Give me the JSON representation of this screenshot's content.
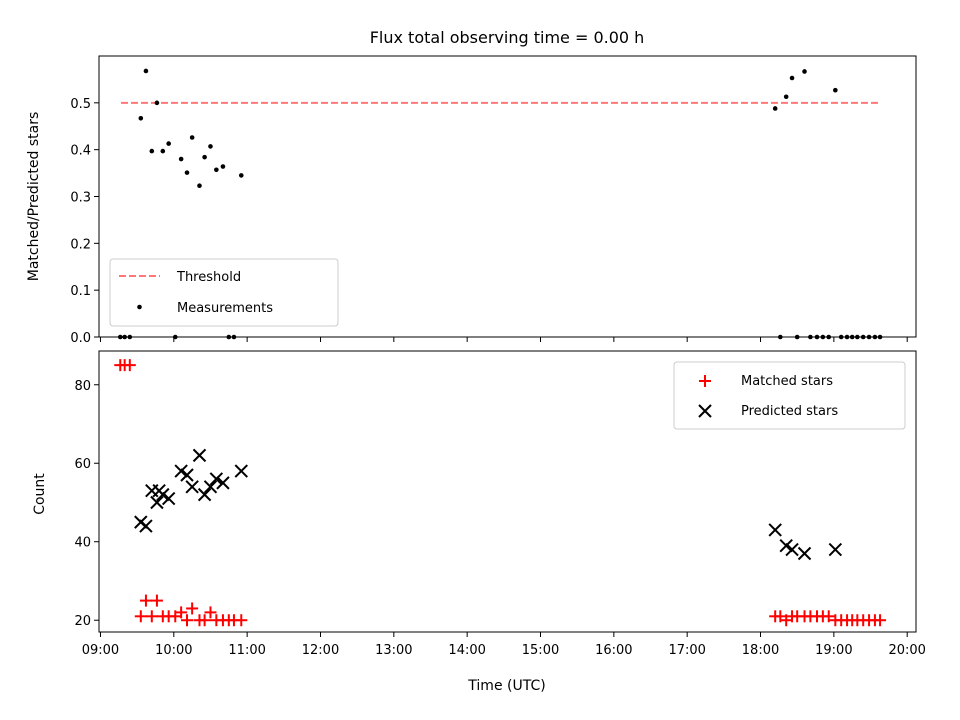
{
  "title": "Flux total observing time = 0.00 h",
  "colors": {
    "threshold": "#ff7777",
    "measurement": "#000000",
    "matched": "#ff0000",
    "predicted": "#000000"
  },
  "chart_data": [
    {
      "type": "scatter",
      "panel": "top",
      "ylabel": "Matched/Predicted stars",
      "xlim": [
        8.98,
        20.12
      ],
      "ylim": [
        0.0,
        0.6
      ],
      "yticks": [
        0.0,
        0.1,
        0.2,
        0.3,
        0.4,
        0.5
      ],
      "ytick_labels": [
        "0.0",
        "0.1",
        "0.2",
        "0.3",
        "0.4",
        "0.5"
      ],
      "legend_position": "lower-left",
      "series": [
        {
          "name": "Threshold",
          "kind": "dashed-line",
          "points": [
            [
              9.28,
              0.5
            ],
            [
              19.63,
              0.5
            ]
          ]
        },
        {
          "name": "Measurements",
          "kind": "dots",
          "points": [
            [
              9.27,
              0.0
            ],
            [
              9.33,
              0.0
            ],
            [
              9.4,
              0.0
            ],
            [
              9.55,
              0.467
            ],
            [
              9.62,
              0.568
            ],
            [
              9.7,
              0.397
            ],
            [
              9.77,
              0.5
            ],
            [
              9.85,
              0.397
            ],
            [
              9.93,
              0.413
            ],
            [
              10.02,
              0.0
            ],
            [
              10.1,
              0.38
            ],
            [
              10.18,
              0.351
            ],
            [
              10.25,
              0.426
            ],
            [
              10.35,
              0.323
            ],
            [
              10.42,
              0.384
            ],
            [
              10.5,
              0.407
            ],
            [
              10.58,
              0.357
            ],
            [
              10.67,
              0.364
            ],
            [
              10.75,
              0.0
            ],
            [
              10.82,
              0.0
            ],
            [
              10.92,
              0.345
            ],
            [
              18.2,
              0.488
            ],
            [
              18.27,
              0.0
            ],
            [
              18.35,
              0.513
            ],
            [
              18.43,
              0.553
            ],
            [
              18.5,
              0.0
            ],
            [
              18.6,
              0.567
            ],
            [
              18.68,
              0.0
            ],
            [
              18.77,
              0.0
            ],
            [
              18.85,
              0.0
            ],
            [
              18.93,
              0.0
            ],
            [
              19.02,
              0.527
            ],
            [
              19.1,
              0.0
            ],
            [
              19.18,
              0.0
            ],
            [
              19.25,
              0.0
            ],
            [
              19.32,
              0.0
            ],
            [
              19.4,
              0.0
            ],
            [
              19.48,
              0.0
            ],
            [
              19.56,
              0.0
            ],
            [
              19.63,
              0.0
            ]
          ]
        }
      ]
    },
    {
      "type": "scatter",
      "panel": "bottom",
      "xlabel": "Time (UTC)",
      "ylabel": "Count",
      "xlim": [
        8.98,
        20.12
      ],
      "ylim": [
        17,
        88.6
      ],
      "xticks": [
        9,
        10,
        11,
        12,
        13,
        14,
        15,
        16,
        17,
        18,
        19,
        20
      ],
      "xtick_labels": [
        "09:00",
        "10:00",
        "11:00",
        "12:00",
        "13:00",
        "14:00",
        "15:00",
        "16:00",
        "17:00",
        "18:00",
        "19:00",
        "20:00"
      ],
      "yticks": [
        20,
        40,
        60,
        80
      ],
      "ytick_labels": [
        "20",
        "40",
        "60",
        "80"
      ],
      "legend_position": "upper-right",
      "series": [
        {
          "name": "Matched stars",
          "kind": "plus",
          "points": [
            [
              9.27,
              85
            ],
            [
              9.33,
              85
            ],
            [
              9.4,
              85
            ],
            [
              9.55,
              21
            ],
            [
              9.62,
              25
            ],
            [
              9.7,
              21
            ],
            [
              9.77,
              25
            ],
            [
              9.85,
              21
            ],
            [
              9.93,
              21
            ],
            [
              10.02,
              21
            ],
            [
              10.1,
              22
            ],
            [
              10.18,
              20
            ],
            [
              10.25,
              23
            ],
            [
              10.35,
              20
            ],
            [
              10.42,
              20
            ],
            [
              10.5,
              22
            ],
            [
              10.58,
              20
            ],
            [
              10.67,
              20
            ],
            [
              10.75,
              20
            ],
            [
              10.82,
              20
            ],
            [
              10.92,
              20
            ],
            [
              18.2,
              21
            ],
            [
              18.27,
              21
            ],
            [
              18.35,
              20
            ],
            [
              18.43,
              21
            ],
            [
              18.5,
              21
            ],
            [
              18.6,
              21
            ],
            [
              18.68,
              21
            ],
            [
              18.77,
              21
            ],
            [
              18.85,
              21
            ],
            [
              18.93,
              21
            ],
            [
              19.02,
              20
            ],
            [
              19.1,
              20
            ],
            [
              19.18,
              20
            ],
            [
              19.25,
              20
            ],
            [
              19.32,
              20
            ],
            [
              19.4,
              20
            ],
            [
              19.48,
              20
            ],
            [
              19.56,
              20
            ],
            [
              19.63,
              20
            ]
          ]
        },
        {
          "name": "Predicted stars",
          "kind": "cross",
          "points": [
            [
              9.55,
              45
            ],
            [
              9.62,
              44
            ],
            [
              9.7,
              53
            ],
            [
              9.77,
              50
            ],
            [
              9.8,
              53
            ],
            [
              9.85,
              52
            ],
            [
              9.93,
              51
            ],
            [
              10.1,
              58
            ],
            [
              10.18,
              57
            ],
            [
              10.25,
              54
            ],
            [
              10.35,
              62
            ],
            [
              10.42,
              52
            ],
            [
              10.5,
              54
            ],
            [
              10.58,
              56
            ],
            [
              10.67,
              55
            ],
            [
              10.92,
              58
            ],
            [
              18.2,
              43
            ],
            [
              18.35,
              39
            ],
            [
              18.43,
              38
            ],
            [
              18.6,
              37
            ],
            [
              19.02,
              38
            ]
          ]
        }
      ]
    }
  ]
}
